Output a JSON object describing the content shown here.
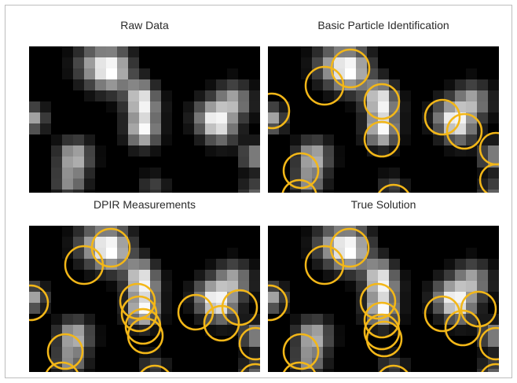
{
  "figure": {
    "panels": [
      {
        "key": "raw",
        "title": "Raw Data",
        "overlay": "none"
      },
      {
        "key": "basic",
        "title": "Basic Particle Identification",
        "overlay": "basic"
      },
      {
        "key": "dpir",
        "title": "DPIR Measurements",
        "overlay": "dpir"
      },
      {
        "key": "true",
        "title": "True Solution",
        "overlay": "true"
      }
    ],
    "circle_color": "#f3b718",
    "background_color": "#000000"
  }
}
